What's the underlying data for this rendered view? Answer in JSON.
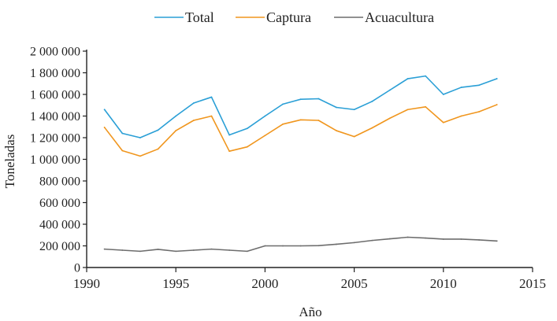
{
  "chart_data": {
    "type": "line",
    "title": "",
    "xlabel": "Año",
    "ylabel": "Toneladas",
    "xlim": [
      1990,
      2015
    ],
    "ylim": [
      0,
      2000000
    ],
    "x_ticks": [
      1990,
      1995,
      2000,
      2005,
      2010,
      2015
    ],
    "x_tick_labels": [
      "1990",
      "1995",
      "2000",
      "2005",
      "2010",
      "2015"
    ],
    "y_ticks": [
      0,
      200000,
      400000,
      600000,
      800000,
      1000000,
      1200000,
      1400000,
      1600000,
      1800000,
      2000000
    ],
    "y_tick_labels": [
      "0",
      "200 000",
      "400 000",
      "600 000",
      "800 000",
      "1 000 000",
      "1 200 000",
      "1 400 000",
      "1 600 000",
      "1 800 000",
      "2 000 000"
    ],
    "legend_position": "top-center",
    "grid": false,
    "x": [
      1991,
      1992,
      1993,
      1994,
      1995,
      1996,
      1997,
      1998,
      1999,
      2000,
      2001,
      2002,
      2003,
      2004,
      2005,
      2006,
      2007,
      2008,
      2009,
      2010,
      2011,
      2012,
      2013
    ],
    "series": [
      {
        "name": "Total",
        "color": "#2a9fd6",
        "values": [
          1460000,
          1240000,
          1200000,
          1270000,
          1400000,
          1520000,
          1575000,
          1225000,
          1285000,
          1400000,
          1510000,
          1555000,
          1560000,
          1480000,
          1460000,
          1535000,
          1640000,
          1745000,
          1770000,
          1600000,
          1665000,
          1685000,
          1745000
        ]
      },
      {
        "name": "Captura",
        "color": "#f0961e",
        "values": [
          1295000,
          1080000,
          1030000,
          1095000,
          1265000,
          1360000,
          1400000,
          1075000,
          1115000,
          1220000,
          1325000,
          1365000,
          1360000,
          1265000,
          1210000,
          1290000,
          1380000,
          1460000,
          1485000,
          1340000,
          1400000,
          1440000,
          1505000
        ]
      },
      {
        "name": "Acuacultura",
        "color": "#6d6d6d",
        "values": [
          170000,
          160000,
          150000,
          168000,
          150000,
          160000,
          170000,
          160000,
          150000,
          200000,
          200000,
          200000,
          202000,
          215000,
          230000,
          250000,
          265000,
          280000,
          272000,
          262000,
          262000,
          255000,
          245000
        ]
      }
    ]
  }
}
